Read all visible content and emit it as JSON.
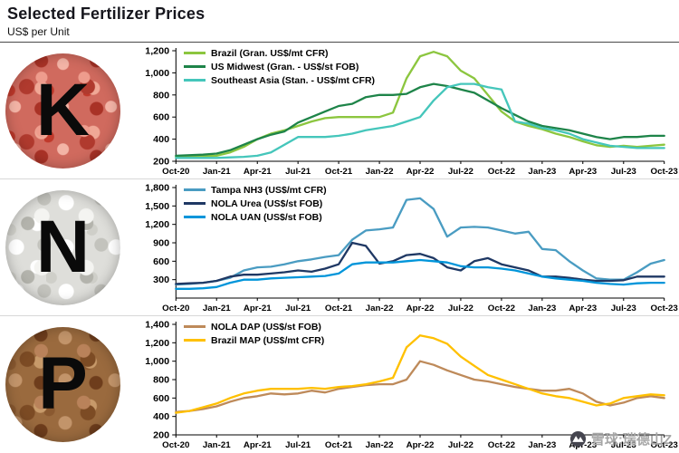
{
  "header": {
    "title": "Selected Fertilizer Prices",
    "subtitle": "US$ per Unit"
  },
  "watermark": {
    "icon": "xueqiu-logo",
    "text": "雪球:瑞德山Z"
  },
  "x_labels": [
    "Oct-20",
    "Jan-21",
    "Apr-21",
    "Jul-21",
    "Oct-21",
    "Jan-22",
    "Apr-22",
    "Jul-22",
    "Oct-22",
    "Jan-23",
    "Apr-23",
    "Jul-23",
    "Oct-23"
  ],
  "chart_data": [
    {
      "type": "line",
      "panel": "potash",
      "nutrient_letter": "K",
      "xlabel": "",
      "ylabel": "US$ per Unit",
      "ylim": [
        200,
        1200
      ],
      "yticks": [
        200,
        400,
        600,
        800,
        1000,
        1200
      ],
      "grid": false,
      "legend_position": "top-left",
      "x_range": [
        "Oct-20",
        "Oct-23"
      ],
      "x_frequency": "monthly",
      "series": [
        {
          "name": "Brazil (Gran. US$/mt CFR)",
          "color": "#8CC63F",
          "values": [
            240,
            240,
            245,
            250,
            280,
            330,
            400,
            450,
            480,
            520,
            560,
            590,
            600,
            600,
            600,
            600,
            640,
            950,
            1150,
            1190,
            1150,
            1020,
            950,
            800,
            650,
            560,
            520,
            490,
            450,
            420,
            380,
            345,
            330,
            340,
            330,
            340,
            350
          ]
        },
        {
          "name": "US Midwest (Gran. - US$/st FOB)",
          "color": "#1E8449",
          "values": [
            250,
            255,
            260,
            270,
            300,
            350,
            400,
            440,
            470,
            550,
            600,
            650,
            700,
            720,
            780,
            800,
            800,
            810,
            870,
            900,
            880,
            850,
            820,
            750,
            680,
            620,
            560,
            520,
            500,
            480,
            450,
            420,
            400,
            420,
            420,
            430,
            430
          ]
        },
        {
          "name": "Southeast Asia (Stan. - US$/mt CFR)",
          "color": "#45C6BB",
          "values": [
            230,
            230,
            230,
            230,
            235,
            240,
            250,
            280,
            350,
            420,
            420,
            420,
            430,
            450,
            480,
            500,
            520,
            560,
            600,
            750,
            870,
            900,
            900,
            870,
            850,
            560,
            540,
            500,
            480,
            450,
            400,
            370,
            340,
            330,
            320,
            320,
            320
          ]
        }
      ]
    },
    {
      "type": "line",
      "panel": "nitrogen",
      "nutrient_letter": "N",
      "xlabel": "",
      "ylabel": "US$ per Unit",
      "ylim": [
        0,
        1800
      ],
      "yticks": [
        300,
        600,
        900,
        1200,
        1500,
        1800
      ],
      "grid": false,
      "legend_position": "top-left",
      "x_range": [
        "Oct-20",
        "Oct-23"
      ],
      "x_frequency": "monthly",
      "series": [
        {
          "name": "Tampa NH3 (US$/mt CFR)",
          "color": "#4A9CC2",
          "values": [
            220,
            230,
            250,
            280,
            330,
            450,
            500,
            510,
            550,
            600,
            630,
            670,
            700,
            950,
            1100,
            1120,
            1150,
            1600,
            1625,
            1450,
            1000,
            1150,
            1160,
            1150,
            1100,
            1050,
            1080,
            800,
            780,
            600,
            450,
            320,
            300,
            300,
            420,
            560,
            620
          ]
        },
        {
          "name": "NOLA Urea (US$/st FOB)",
          "color": "#1F3864",
          "values": [
            230,
            240,
            250,
            280,
            350,
            380,
            380,
            400,
            420,
            450,
            430,
            480,
            550,
            900,
            850,
            560,
            600,
            700,
            720,
            650,
            500,
            450,
            600,
            650,
            550,
            500,
            450,
            350,
            350,
            330,
            300,
            280,
            280,
            290,
            350,
            350,
            350
          ]
        },
        {
          "name": "NOLA UAN (US$/st FOB)",
          "color": "#0095DA",
          "values": [
            150,
            150,
            160,
            180,
            250,
            300,
            300,
            320,
            330,
            340,
            350,
            360,
            400,
            550,
            580,
            580,
            580,
            600,
            620,
            600,
            580,
            520,
            500,
            500,
            480,
            450,
            400,
            350,
            320,
            300,
            280,
            250,
            230,
            220,
            240,
            250,
            250
          ]
        }
      ]
    },
    {
      "type": "line",
      "panel": "phosphate",
      "nutrient_letter": "P",
      "xlabel": "",
      "ylabel": "US$ per Unit",
      "ylim": [
        200,
        1400
      ],
      "yticks": [
        200,
        400,
        600,
        800,
        1000,
        1200,
        1400
      ],
      "grid": false,
      "legend_position": "top-left",
      "x_range": [
        "Oct-20",
        "Oct-23"
      ],
      "x_frequency": "monthly",
      "series": [
        {
          "name": "NOLA DAP (US$/st FOB)",
          "color": "#BE8A5A",
          "values": [
            450,
            460,
            480,
            510,
            560,
            600,
            620,
            650,
            640,
            650,
            680,
            660,
            700,
            720,
            740,
            750,
            750,
            800,
            1000,
            960,
            900,
            850,
            800,
            780,
            750,
            720,
            700,
            680,
            680,
            700,
            650,
            560,
            520,
            550,
            600,
            620,
            600
          ]
        },
        {
          "name": "Brazil MAP (US$/mt CFR)",
          "color": "#FFC000",
          "values": [
            440,
            460,
            500,
            540,
            600,
            650,
            680,
            700,
            700,
            700,
            710,
            700,
            720,
            730,
            750,
            780,
            820,
            1150,
            1280,
            1250,
            1190,
            1050,
            950,
            850,
            800,
            750,
            700,
            650,
            620,
            600,
            560,
            520,
            540,
            600,
            620,
            640,
            630
          ]
        }
      ]
    }
  ]
}
